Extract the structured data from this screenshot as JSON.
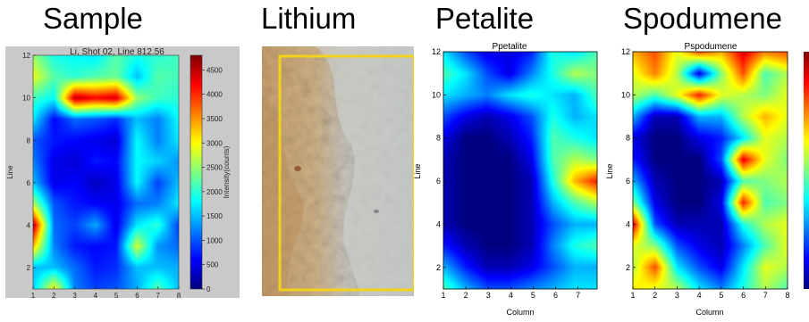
{
  "headings": [
    "Sample",
    "Lithium",
    "Petalite",
    "Spodumene"
  ],
  "sample": {
    "title": "Li, Shot 02, Line 812.56",
    "ylabel": "Line",
    "colorbar_label": "Intensity(counts)",
    "colorbar_ticks": [
      "0",
      "500",
      "1000",
      "1500",
      "2000",
      "2500",
      "3000",
      "3500",
      "4000",
      "4500"
    ],
    "x_ticks": [
      "1",
      "2",
      "3",
      "4",
      "5",
      "6",
      "7",
      "8"
    ],
    "y_ticks": [
      "2",
      "4",
      "6",
      "8",
      "10",
      "12"
    ],
    "colormap": "jet"
  },
  "lithium": {
    "image": "rock-photo",
    "highlight_color": "#f2d21a"
  },
  "petalite": {
    "title": "Ppetalite",
    "xlabel": "Column",
    "ylabel": "Line",
    "x_ticks": [
      "1",
      "2",
      "3",
      "4",
      "5",
      "6",
      "7"
    ],
    "y_ticks": [
      "2",
      "4",
      "6",
      "8",
      "10",
      "12"
    ]
  },
  "spodumene": {
    "title": "Pspodumene",
    "xlabel": "Column",
    "ylabel": "Line",
    "x_ticks": [
      "1",
      "2",
      "3",
      "4",
      "5",
      "6",
      "7",
      "8"
    ],
    "y_ticks": [
      "2",
      "4",
      "6",
      "8",
      "10",
      "12"
    ]
  },
  "chart_data": [
    {
      "type": "heatmap",
      "title": "Li, Shot 02, Line 812.56",
      "xlabel": "",
      "ylabel": "Line",
      "x": [
        1,
        2,
        3,
        4,
        5,
        6,
        7,
        8
      ],
      "y": [
        1,
        2,
        3,
        4,
        5,
        6,
        7,
        8,
        9,
        10,
        11,
        12
      ],
      "colorbar": {
        "label": "Intensity(counts)",
        "min": 0,
        "max": 4800
      },
      "values": [
        [
          1600,
          3000,
          1200,
          900,
          1000,
          1400,
          2200,
          1500
        ],
        [
          1500,
          1500,
          1100,
          700,
          800,
          1500,
          1500,
          1400
        ],
        [
          3300,
          1200,
          700,
          600,
          700,
          2800,
          1300,
          1100
        ],
        [
          4500,
          1100,
          900,
          1400,
          500,
          1700,
          2000,
          900
        ],
        [
          2600,
          1000,
          700,
          600,
          500,
          1100,
          1200,
          1700
        ],
        [
          1500,
          500,
          600,
          300,
          500,
          1800,
          900,
          1500
        ],
        [
          1200,
          500,
          400,
          700,
          600,
          1800,
          1600,
          1300
        ],
        [
          1000,
          700,
          600,
          500,
          400,
          1800,
          1200,
          1700
        ],
        [
          1700,
          600,
          1100,
          1000,
          800,
          1500,
          1200,
          1800
        ],
        [
          2100,
          1800,
          4500,
          4200,
          4400,
          2500,
          2100,
          2000
        ],
        [
          2900,
          2200,
          2000,
          2200,
          2300,
          1500,
          2200,
          2100
        ],
        [
          2500,
          1900,
          1800,
          1700,
          2200,
          1900,
          2000,
          2100
        ]
      ]
    },
    {
      "type": "heatmap",
      "title": "Ppetalite",
      "xlabel": "Column",
      "ylabel": "Line",
      "x": [
        1,
        2,
        3,
        4,
        5,
        6,
        7,
        8
      ],
      "y": [
        1,
        2,
        3,
        4,
        5,
        6,
        7,
        8,
        9,
        10,
        11,
        12
      ],
      "values": [
        [
          0.45,
          0.3,
          0.2,
          0.2,
          0.25,
          0.3,
          0.35,
          0.35
        ],
        [
          0.3,
          0.15,
          0.05,
          0.05,
          0.1,
          0.2,
          0.3,
          0.3
        ],
        [
          0.15,
          0.05,
          0.0,
          0.0,
          0.05,
          0.25,
          0.4,
          0.45
        ],
        [
          0.05,
          0.0,
          0.0,
          0.0,
          0.05,
          0.2,
          0.3,
          0.3
        ],
        [
          0.05,
          0.0,
          0.0,
          0.0,
          0.05,
          0.3,
          0.45,
          0.55
        ],
        [
          0.05,
          0.0,
          0.0,
          0.0,
          0.05,
          0.4,
          0.7,
          0.85
        ],
        [
          0.05,
          0.0,
          0.0,
          0.0,
          0.1,
          0.45,
          0.55,
          0.5
        ],
        [
          0.1,
          0.0,
          0.0,
          0.05,
          0.15,
          0.45,
          0.4,
          0.35
        ],
        [
          0.2,
          0.1,
          0.05,
          0.1,
          0.2,
          0.4,
          0.3,
          0.35
        ],
        [
          0.35,
          0.3,
          0.25,
          0.35,
          0.4,
          0.35,
          0.3,
          0.45
        ],
        [
          0.45,
          0.35,
          0.2,
          0.1,
          0.25,
          0.4,
          0.55,
          0.5
        ],
        [
          0.35,
          0.2,
          0.1,
          0.1,
          0.15,
          0.4,
          0.35,
          0.45
        ]
      ]
    },
    {
      "type": "heatmap",
      "title": "Pspodumene",
      "xlabel": "Column",
      "ylabel": "Line",
      "x": [
        1,
        2,
        3,
        4,
        5,
        6,
        7,
        8
      ],
      "y": [
        1,
        2,
        3,
        4,
        5,
        6,
        7,
        8,
        9,
        10,
        11,
        12
      ],
      "values": [
        [
          0.65,
          0.6,
          0.55,
          0.35,
          0.25,
          0.4,
          0.55,
          0.45
        ],
        [
          0.55,
          0.8,
          0.35,
          0.2,
          0.1,
          0.35,
          0.6,
          0.55
        ],
        [
          0.6,
          0.5,
          0.2,
          0.1,
          0.05,
          0.25,
          0.45,
          0.6
        ],
        [
          0.9,
          0.2,
          0.05,
          0.05,
          0.05,
          0.4,
          0.55,
          0.6
        ],
        [
          0.5,
          0.1,
          0.0,
          0.0,
          0.1,
          0.85,
          0.45,
          0.5
        ],
        [
          0.3,
          0.05,
          0.0,
          0.0,
          0.05,
          0.45,
          0.5,
          0.55
        ],
        [
          0.15,
          0.0,
          0.0,
          0.0,
          0.2,
          0.9,
          0.6,
          0.5
        ],
        [
          0.1,
          0.0,
          0.0,
          0.1,
          0.15,
          0.35,
          0.6,
          0.55
        ],
        [
          0.3,
          0.05,
          0.05,
          0.3,
          0.3,
          0.55,
          0.7,
          0.6
        ],
        [
          0.55,
          0.45,
          0.6,
          0.85,
          0.6,
          0.55,
          0.5,
          0.6
        ],
        [
          0.6,
          0.75,
          0.55,
          0.1,
          0.5,
          0.8,
          0.45,
          0.55
        ],
        [
          0.7,
          0.8,
          0.6,
          0.8,
          0.7,
          0.9,
          0.75,
          0.8
        ]
      ]
    }
  ]
}
